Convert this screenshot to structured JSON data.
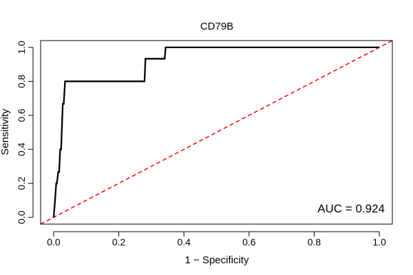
{
  "chart_data": {
    "type": "line",
    "title": "CD79B",
    "xlabel": "1 − Specificity",
    "ylabel": "Sensitivity",
    "xlim": [
      -0.04,
      1.04
    ],
    "ylim": [
      -0.04,
      1.04
    ],
    "xticks": [
      0.0,
      0.2,
      0.4,
      0.6,
      0.8,
      1.0
    ],
    "xtick_labels": [
      "0.0",
      "0.2",
      "0.4",
      "0.6",
      "0.8",
      "1.0"
    ],
    "yticks": [
      0.0,
      0.2,
      0.4,
      0.6,
      0.8,
      1.0
    ],
    "ytick_labels": [
      "0.0",
      "0.2",
      "0.4",
      "0.6",
      "0.8",
      "1.0"
    ],
    "grid": false,
    "series": [
      {
        "name": "ROC curve",
        "color": "#000000",
        "style": "solid",
        "x": [
          0.0,
          0.003,
          0.008,
          0.01,
          0.014,
          0.017,
          0.02,
          0.023,
          0.028,
          0.031,
          0.035,
          0.038,
          0.205,
          0.279,
          0.282,
          0.341,
          0.344,
          1.0
        ],
        "y": [
          0.0,
          0.067,
          0.2,
          0.2,
          0.267,
          0.267,
          0.4,
          0.4,
          0.667,
          0.667,
          0.8,
          0.8,
          0.8,
          0.8,
          0.933,
          0.933,
          1.0,
          1.0
        ]
      },
      {
        "name": "Reference diagonal",
        "color": "#ff0000",
        "style": "dashed",
        "x": [
          -0.04,
          1.04
        ],
        "y": [
          -0.04,
          1.04
        ]
      }
    ],
    "annotations": [
      {
        "text": "AUC = 0.924",
        "position": "bottom-right"
      }
    ]
  }
}
